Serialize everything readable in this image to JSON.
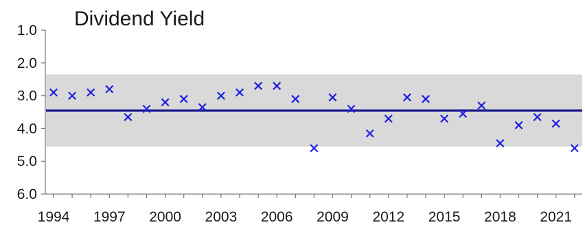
{
  "chart_data": {
    "type": "scatter",
    "title": "Dividend Yield",
    "xlabel": "",
    "ylabel": "",
    "y_inverted": true,
    "ylim": [
      1.0,
      6.0
    ],
    "xlim": [
      1994,
      2022
    ],
    "yticks": [
      "1.0",
      "2.0",
      "3.0",
      "4.0",
      "5.0",
      "6.0"
    ],
    "xticks": [
      "1994",
      "1997",
      "2000",
      "2003",
      "2006",
      "2009",
      "2012",
      "2015",
      "2018",
      "2021"
    ],
    "grid": false,
    "legend": "none",
    "marker": "x",
    "colors": {
      "points": "#1f1fe0",
      "mean_line": "#1a1a8c",
      "band": "#d9d9d9",
      "axis": "#7f7f7f",
      "text": "#1a1a1a"
    },
    "mean_line": 3.45,
    "band": [
      2.35,
      4.55
    ],
    "series": [
      {
        "x": [
          1994,
          1995,
          1996,
          1997,
          1998,
          1999,
          2000,
          2001,
          2002,
          2003,
          2004,
          2005,
          2006,
          2007,
          2008,
          2009,
          2010,
          2011,
          2012,
          2013,
          2014,
          2015,
          2016,
          2017,
          2018,
          2019,
          2020,
          2021,
          2022
        ],
        "values": [
          2.9,
          3.0,
          2.9,
          2.8,
          3.65,
          3.4,
          3.2,
          3.1,
          3.35,
          3.0,
          2.9,
          2.7,
          2.7,
          3.1,
          4.6,
          3.05,
          3.4,
          4.15,
          3.7,
          3.05,
          3.1,
          3.7,
          3.55,
          3.3,
          4.45,
          3.9,
          3.65,
          3.85,
          4.6
        ]
      }
    ]
  }
}
